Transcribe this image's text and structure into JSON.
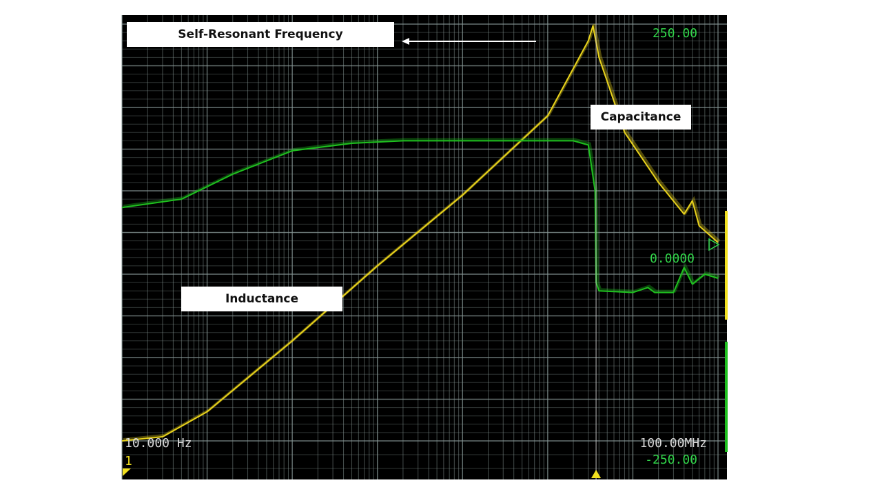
{
  "chart_data": {
    "type": "line",
    "x_scale": "log",
    "xlim_label": [
      "10.000 Hz",
      "100.00MHz"
    ],
    "y_top_label": "250.00",
    "y_ref_label": "0.0000",
    "y_bottom_label": "-250.00",
    "channel_label": "1",
    "grid": true,
    "series": [
      {
        "color": "#e8d21c",
        "points": [
          [
            10,
            -250
          ],
          [
            30,
            -245
          ],
          [
            100,
            -215
          ],
          [
            1000,
            -130
          ],
          [
            10000,
            -40
          ],
          [
            100000,
            45
          ],
          [
            1000000,
            140
          ],
          [
            3000000,
            230
          ],
          [
            3400000,
            248
          ],
          [
            4000000,
            210
          ],
          [
            8000000,
            120
          ],
          [
            20000000,
            60
          ],
          [
            40000000,
            22
          ],
          [
            50000000,
            38
          ],
          [
            60000000,
            8
          ],
          [
            100000000,
            -12
          ]
        ]
      },
      {
        "color": "#1fc01f",
        "points": [
          [
            10,
            30
          ],
          [
            50,
            40
          ],
          [
            200,
            70
          ],
          [
            1000,
            98
          ],
          [
            5000,
            107
          ],
          [
            20000,
            110
          ],
          [
            200000,
            110
          ],
          [
            2000000,
            110
          ],
          [
            3000000,
            105
          ],
          [
            3600000,
            50
          ],
          [
            3700000,
            -60
          ],
          [
            4000000,
            -70
          ],
          [
            10000000,
            -72
          ],
          [
            15000000,
            -66
          ],
          [
            18000000,
            -72
          ],
          [
            30000000,
            -72
          ],
          [
            40000000,
            -42
          ],
          [
            50000000,
            -62
          ],
          [
            70000000,
            -50
          ],
          [
            100000000,
            -55
          ]
        ]
      }
    ],
    "x_marker": 3700000
  },
  "annotations": {
    "srf": "Self-Resonant Frequency",
    "capacitance": "Capacitance",
    "inductance": "Inductance"
  },
  "colors": {
    "background": "#000000",
    "grid": "#8a9a98",
    "scale_text": "#31d64a",
    "axis_text": "#d8d8d8",
    "marker": "#f2e01e"
  }
}
